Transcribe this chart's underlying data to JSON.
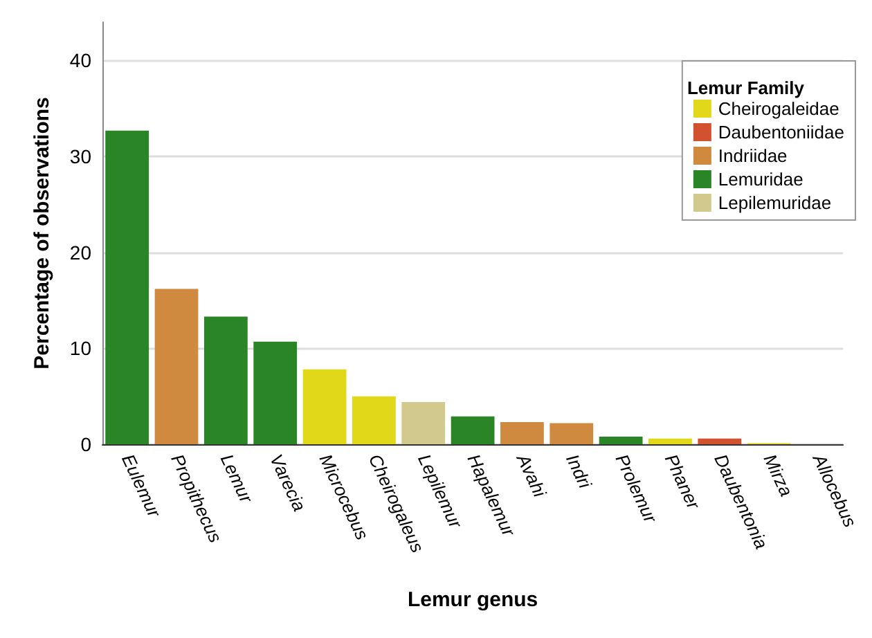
{
  "chart_data": {
    "type": "bar",
    "xlabel": "Lemur genus",
    "ylabel": "Percentage of observations",
    "legend_title": "Lemur Family",
    "categories": [
      "Eulemur",
      "Propithecus",
      "Lemur",
      "Varecia",
      "Microcebus",
      "Cheirogaleus",
      "Lepilemur",
      "Hapalemur",
      "Avahi",
      "Indri",
      "Prolemur",
      "Phaner",
      "Daubentonia",
      "Mirza",
      "Allocebus"
    ],
    "series": [
      {
        "name": "Cheirogaleidae",
        "color": "#e0d818",
        "values": [
          null,
          null,
          null,
          null,
          7.8,
          5.0,
          null,
          null,
          null,
          null,
          null,
          0.6,
          null,
          0.1,
          null
        ]
      },
      {
        "name": "Daubentoniidae",
        "color": "#d2512f",
        "values": [
          null,
          null,
          null,
          null,
          null,
          null,
          null,
          null,
          null,
          null,
          null,
          null,
          0.6,
          null,
          null
        ]
      },
      {
        "name": "Indriidae",
        "color": "#cf8a40",
        "values": [
          null,
          16.2,
          null,
          null,
          null,
          null,
          null,
          null,
          2.3,
          2.2,
          null,
          null,
          null,
          null,
          null
        ]
      },
      {
        "name": "Lemuridae",
        "color": "#2a8526",
        "values": [
          32.7,
          null,
          13.3,
          10.7,
          null,
          null,
          null,
          2.9,
          null,
          null,
          0.8,
          null,
          null,
          null,
          null
        ]
      },
      {
        "name": "Lepilemuridae",
        "color": "#d2c98d",
        "values": [
          null,
          null,
          null,
          null,
          null,
          null,
          4.4,
          null,
          null,
          null,
          null,
          null,
          null,
          null,
          null
        ]
      }
    ],
    "ylim": [
      0,
      44
    ],
    "yticks": [
      0,
      10,
      20,
      30,
      40
    ],
    "grid": "y",
    "legend": "top right"
  }
}
